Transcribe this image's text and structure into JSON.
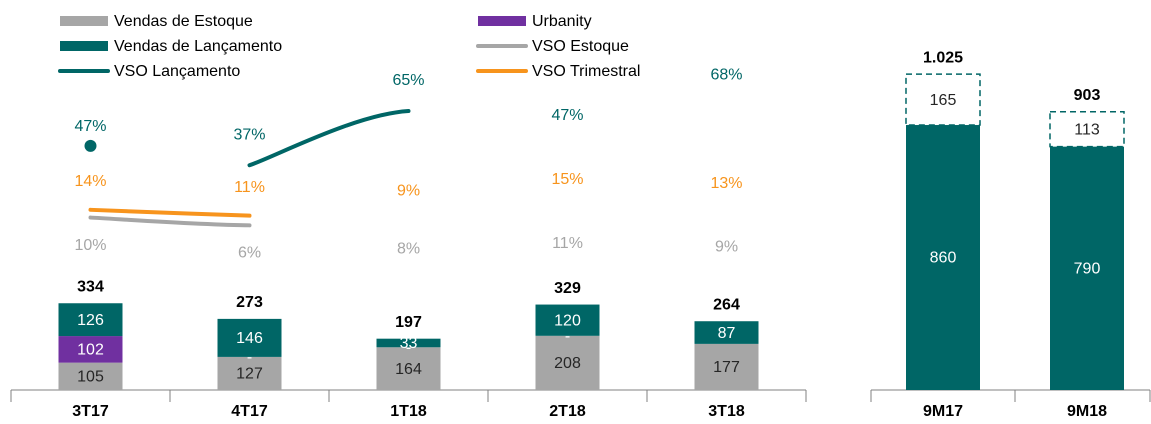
{
  "chart_data": [
    {
      "type": "bar",
      "categories": [
        "3T17",
        "4T17",
        "1T18",
        "2T18",
        "3T18"
      ],
      "series": [
        {
          "name": "Vendas de Estoque",
          "color": "#a6a6a6",
          "label_color": "#262626",
          "values": [
            105,
            127,
            164,
            208,
            177
          ]
        },
        {
          "name": "Urbanity",
          "color": "#7030a0",
          "label_color": "#ffffff",
          "values": [
            102,
            0,
            0,
            0,
            null
          ],
          "value_labels": [
            "102",
            "-",
            "-",
            "-",
            null
          ]
        },
        {
          "name": "Vendas de Lançamento",
          "color": "#006666",
          "label_color": "#ffffff",
          "values": [
            126,
            146,
            33,
            120,
            87
          ]
        },
        {
          "name": "VSO Estoque",
          "type": "line",
          "axis": "y2",
          "color": "#a6a6a6",
          "label_offset": 28,
          "values": [
            10,
            6,
            8,
            11,
            9
          ],
          "value_labels": [
            "10%",
            "6%",
            "8%",
            "11%",
            "9%"
          ]
        },
        {
          "name": "VSO Lançamento",
          "type": "line",
          "axis": "y2",
          "color": "#006666",
          "label_offset": -30,
          "detached_points": [
            0
          ],
          "values": [
            47,
            37,
            65,
            47,
            68
          ],
          "value_labels": [
            "47%",
            "37%",
            "65%",
            "47%",
            "68%"
          ]
        },
        {
          "name": "VSO Trimestral",
          "type": "line",
          "axis": "y2",
          "color": "#f7941d",
          "label_offset": -28,
          "values": [
            14,
            11,
            9,
            15,
            13
          ],
          "value_labels": [
            "14%",
            "11%",
            "9%",
            "15%",
            "13%"
          ]
        }
      ],
      "totals": {
        "values": [
          334,
          273,
          197,
          329,
          264
        ]
      },
      "ylim": [
        0,
        1190
      ],
      "y2lim": [
        -79,
        81
      ],
      "legend": "top"
    },
    {
      "type": "bar",
      "categories": [
        "9M17",
        "9M18"
      ],
      "series": [
        {
          "color": "#006666",
          "label_color": "#ffffff",
          "values": [
            860,
            790
          ]
        },
        {
          "color": "#006666",
          "style": "dashed",
          "label_color": "#262626",
          "values": [
            165,
            113
          ]
        }
      ],
      "totals": {
        "values": [
          1025,
          903
        ],
        "value_labels": [
          "1.025",
          "903"
        ]
      },
      "ylim": [
        0,
        1071
      ]
    }
  ]
}
